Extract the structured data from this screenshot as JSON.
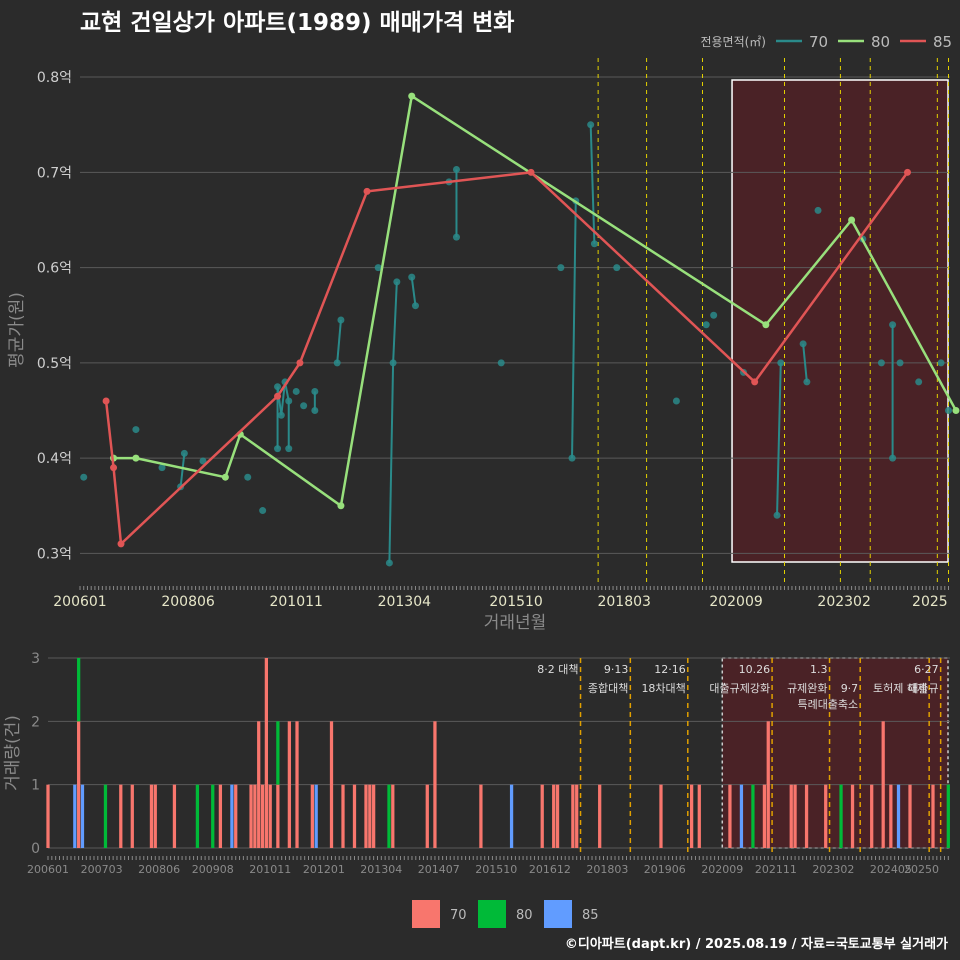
{
  "title": "교현 건일상가 아파트(1989) 매매가격 변화",
  "credit": "©디아파트(dapt.kr) / 2025.08.19 / 자료=국토교통부 실거래가",
  "colors": {
    "s70": "#2a8a8a",
    "s80": "#98e07c",
    "s85": "#e05555",
    "bar70": "#f8766d",
    "bar80": "#00ba38",
    "bar85": "#619cff",
    "highlight": "#4a2226",
    "vline": "#e3d200"
  },
  "chart_data": [
    {
      "type": "line",
      "xlabel": "거래년월",
      "ylabel": "평균가(원)",
      "ylim": [
        0.27,
        0.82
      ],
      "yticks": [
        0.3,
        0.4,
        0.5,
        0.6,
        0.7,
        0.8
      ],
      "ytick_labels": [
        "0.3억",
        "0.4억",
        "0.5억",
        "0.6억",
        "0.7억",
        "0.8억"
      ],
      "xticks": [
        "200601",
        "200806",
        "201011",
        "201304",
        "201510",
        "201803",
        "202009",
        "202302",
        "2025"
      ],
      "legend_title": "전용면적(㎡)",
      "legend": [
        "70",
        "80",
        "85"
      ],
      "highlight": [
        "2020.09",
        "2025.07"
      ],
      "vlines": [
        "2017.08",
        "2018.09",
        "2019.12",
        "2021.10",
        "2023.01",
        "2023.09",
        "2025.03",
        "2025.06"
      ],
      "series": [
        {
          "name": "70",
          "points": [
            [
              "2006.02",
              0.38
            ],
            [
              "2007.04",
              0.43
            ],
            [
              "2007.11",
              0.39
            ],
            [
              "2008.04",
              0.37
            ],
            [
              "2008.05",
              0.405
            ],
            [
              "2008.10",
              0.397
            ],
            [
              "2009.10",
              0.38
            ],
            [
              "2010.02",
              0.345
            ],
            [
              "2010.06",
              0.41
            ],
            [
              "2010.06",
              0.475
            ],
            [
              "2010.07",
              0.445
            ],
            [
              "2010.08",
              0.48
            ],
            [
              "2010.09",
              0.46
            ],
            [
              "2010.09",
              0.41
            ],
            [
              "2010.11",
              0.47
            ],
            [
              "2011.01",
              0.455
            ],
            [
              "2011.04",
              0.47
            ],
            [
              "2011.04",
              0.45
            ],
            [
              "2011.10",
              0.5
            ],
            [
              "2011.11",
              0.545
            ],
            [
              "2012.09",
              0.6
            ],
            [
              "2012.12",
              0.29
            ],
            [
              "2013.01",
              0.5
            ],
            [
              "2013.02",
              0.585
            ],
            [
              "2013.06",
              0.59
            ],
            [
              "2013.07",
              0.56
            ],
            [
              "2014.04",
              0.69
            ],
            [
              "2014.06",
              0.703
            ],
            [
              "2014.06",
              0.632
            ],
            [
              "2015.06",
              0.5
            ],
            [
              "2016.10",
              0.6
            ],
            [
              "2017.01",
              0.4
            ],
            [
              "2017.02",
              0.67
            ],
            [
              "2017.06",
              0.75
            ],
            [
              "2017.07",
              0.625
            ],
            [
              "2018.01",
              0.6
            ],
            [
              "2019.05",
              0.46
            ],
            [
              "2020.01",
              0.54
            ],
            [
              "2020.03",
              0.55
            ],
            [
              "2020.11",
              0.49
            ],
            [
              "2021.08",
              0.34
            ],
            [
              "2021.09",
              0.5
            ],
            [
              "2022.03",
              0.52
            ],
            [
              "2022.04",
              0.48
            ],
            [
              "2022.07",
              0.66
            ],
            [
              "2023.07",
              0.63
            ],
            [
              "2023.12",
              0.5
            ],
            [
              "2024.03",
              0.54
            ],
            [
              "2024.03",
              0.4
            ],
            [
              "2024.05",
              0.5
            ],
            [
              "2024.10",
              0.48
            ],
            [
              "2025.04",
              0.5
            ],
            [
              "2025.06",
              0.45
            ]
          ]
        },
        {
          "name": "80",
          "points": [
            [
              "2006.10",
              0.4
            ],
            [
              "2007.04",
              0.4
            ],
            [
              "2009.04",
              0.38
            ],
            [
              "2009.08",
              0.425
            ],
            [
              "2011.11",
              0.35
            ],
            [
              "2013.06",
              0.78
            ],
            [
              "2021.05",
              0.54
            ],
            [
              "2023.04",
              0.65
            ],
            [
              "2025.08",
              0.45
            ]
          ]
        },
        {
          "name": "85",
          "points": [
            [
              "2006.08",
              0.46
            ],
            [
              "2006.10",
              0.39
            ],
            [
              "2006.12",
              0.31
            ],
            [
              "2010.06",
              0.465
            ],
            [
              "2010.12",
              0.5
            ],
            [
              "2012.06",
              0.68
            ],
            [
              "2016.02",
              0.7
            ],
            [
              "2021.02",
              0.48
            ],
            [
              "2024.07",
              0.7
            ]
          ]
        }
      ]
    },
    {
      "type": "bar",
      "ylabel": "거래량(건)",
      "ylim": [
        0,
        3
      ],
      "yticks": [
        0,
        1,
        2,
        3
      ],
      "xticks": [
        "200601",
        "200703",
        "200806",
        "200908",
        "201011",
        "201201",
        "201304",
        "201407",
        "201510",
        "201612",
        "201803",
        "201906",
        "202009",
        "202111",
        "202302",
        "202405",
        "20250"
      ],
      "legend": [
        "70",
        "80",
        "85"
      ],
      "annotations": [
        {
          "date": "2017.08",
          "top": "8·2 대책",
          "bottom": ""
        },
        {
          "date": "2018.09",
          "top": "9·13",
          "bottom": "종합대책"
        },
        {
          "date": "2019.12",
          "top": "12·16",
          "bottom": "18차대책"
        },
        {
          "date": "2021.10",
          "top": "10.26",
          "bottom": "대출규제강화"
        },
        {
          "date": "2023.01",
          "top": "1.3",
          "bottom": "규제완화"
        },
        {
          "date": "2023.09",
          "top": "",
          "bottom": "9·7"
        },
        {
          "date": "2023.09",
          "top": "",
          "bottom": "특례대출축소"
        },
        {
          "date": "2025.03",
          "top": "",
          "bottom": "토허제 해제"
        },
        {
          "date": "2025.06",
          "top": "6·27",
          "bottom": "대출규"
        }
      ],
      "bars": [
        {
          "date": "2006.01",
          "v70": 1,
          "v80": 0,
          "v85": 0
        },
        {
          "date": "2006.08",
          "v70": 0,
          "v80": 0,
          "v85": 1
        },
        {
          "date": "2006.09",
          "v70": 2,
          "v80": 1,
          "v85": 0
        },
        {
          "date": "2006.10",
          "v70": 0,
          "v80": 0,
          "v85": 1
        },
        {
          "date": "2007.04",
          "v70": 0,
          "v80": 1,
          "v85": 0
        },
        {
          "date": "2007.08",
          "v70": 1,
          "v80": 0,
          "v85": 0
        },
        {
          "date": "2007.11",
          "v70": 1,
          "v80": 0,
          "v85": 0
        },
        {
          "date": "2008.04",
          "v70": 1,
          "v80": 0,
          "v85": 0
        },
        {
          "date": "2008.05",
          "v70": 1,
          "v80": 0,
          "v85": 0
        },
        {
          "date": "2008.10",
          "v70": 1,
          "v80": 0,
          "v85": 0
        },
        {
          "date": "2009.04",
          "v70": 0,
          "v80": 1,
          "v85": 0
        },
        {
          "date": "2009.08",
          "v70": 0,
          "v80": 1,
          "v85": 0
        },
        {
          "date": "2009.10",
          "v70": 1,
          "v80": 0,
          "v85": 0
        },
        {
          "date": "2010.01",
          "v70": 0,
          "v80": 0,
          "v85": 1
        },
        {
          "date": "2010.02",
          "v70": 1,
          "v80": 0,
          "v85": 0
        },
        {
          "date": "2010.06",
          "v70": 1,
          "v80": 0,
          "v85": 0
        },
        {
          "date": "2010.07",
          "v70": 1,
          "v80": 0,
          "v85": 0
        },
        {
          "date": "2010.08",
          "v70": 2,
          "v80": 0,
          "v85": 0
        },
        {
          "date": "2010.09",
          "v70": 1,
          "v80": 0,
          "v85": 0
        },
        {
          "date": "2010.10",
          "v70": 3,
          "v80": 0,
          "v85": 0
        },
        {
          "date": "2010.11",
          "v70": 1,
          "v80": 0,
          "v85": 0
        },
        {
          "date": "2011.01",
          "v70": 1,
          "v80": 1,
          "v85": 0
        },
        {
          "date": "2011.04",
          "v70": 2,
          "v80": 0,
          "v85": 0
        },
        {
          "date": "2011.06",
          "v70": 2,
          "v80": 0,
          "v85": 0
        },
        {
          "date": "2011.10",
          "v70": 1,
          "v80": 0,
          "v85": 0
        },
        {
          "date": "2011.11",
          "v70": 0,
          "v80": 0,
          "v85": 1
        },
        {
          "date": "2012.03",
          "v70": 2,
          "v80": 0,
          "v85": 0
        },
        {
          "date": "2012.06",
          "v70": 1,
          "v80": 0,
          "v85": 0
        },
        {
          "date": "2012.09",
          "v70": 1,
          "v80": 0,
          "v85": 0
        },
        {
          "date": "2012.12",
          "v70": 1,
          "v80": 0,
          "v85": 0
        },
        {
          "date": "2013.01",
          "v70": 1,
          "v80": 0,
          "v85": 0
        },
        {
          "date": "2013.02",
          "v70": 1,
          "v80": 0,
          "v85": 0
        },
        {
          "date": "2013.06",
          "v70": 0,
          "v80": 1,
          "v85": 0
        },
        {
          "date": "2013.07",
          "v70": 1,
          "v80": 0,
          "v85": 0
        },
        {
          "date": "2014.04",
          "v70": 1,
          "v80": 0,
          "v85": 0
        },
        {
          "date": "2014.06",
          "v70": 2,
          "v80": 0,
          "v85": 0
        },
        {
          "date": "2015.06",
          "v70": 1,
          "v80": 0,
          "v85": 0
        },
        {
          "date": "2016.02",
          "v70": 0,
          "v80": 0,
          "v85": 1
        },
        {
          "date": "2016.10",
          "v70": 1,
          "v80": 0,
          "v85": 0
        },
        {
          "date": "2017.01",
          "v70": 1,
          "v80": 0,
          "v85": 0
        },
        {
          "date": "2017.02",
          "v70": 1,
          "v80": 0,
          "v85": 0
        },
        {
          "date": "2017.06",
          "v70": 1,
          "v80": 0,
          "v85": 0
        },
        {
          "date": "2017.07",
          "v70": 1,
          "v80": 0,
          "v85": 0
        },
        {
          "date": "2018.01",
          "v70": 1,
          "v80": 0,
          "v85": 0
        },
        {
          "date": "2019.05",
          "v70": 1,
          "v80": 0,
          "v85": 0
        },
        {
          "date": "2020.01",
          "v70": 1,
          "v80": 0,
          "v85": 0
        },
        {
          "date": "2020.03",
          "v70": 1,
          "v80": 0,
          "v85": 0
        },
        {
          "date": "2020.11",
          "v70": 1,
          "v80": 0,
          "v85": 0
        },
        {
          "date": "2021.02",
          "v70": 0,
          "v80": 0,
          "v85": 1
        },
        {
          "date": "2021.05",
          "v70": 0,
          "v80": 1,
          "v85": 0
        },
        {
          "date": "2021.08",
          "v70": 1,
          "v80": 0,
          "v85": 0
        },
        {
          "date": "2021.09",
          "v70": 2,
          "v80": 0,
          "v85": 0
        },
        {
          "date": "2022.03",
          "v70": 1,
          "v80": 0,
          "v85": 0
        },
        {
          "date": "2022.04",
          "v70": 1,
          "v80": 0,
          "v85": 0
        },
        {
          "date": "2022.07",
          "v70": 1,
          "v80": 0,
          "v85": 0
        },
        {
          "date": "2022.12",
          "v70": 1,
          "v80": 0,
          "v85": 0
        },
        {
          "date": "2023.04",
          "v70": 0,
          "v80": 1,
          "v85": 0
        },
        {
          "date": "2023.07",
          "v70": 1,
          "v80": 0,
          "v85": 0
        },
        {
          "date": "2023.12",
          "v70": 1,
          "v80": 0,
          "v85": 0
        },
        {
          "date": "2024.03",
          "v70": 2,
          "v80": 0,
          "v85": 0
        },
        {
          "date": "2024.05",
          "v70": 1,
          "v80": 0,
          "v85": 0
        },
        {
          "date": "2024.07",
          "v70": 0,
          "v80": 0,
          "v85": 1
        },
        {
          "date": "2024.10",
          "v70": 1,
          "v80": 0,
          "v85": 0
        },
        {
          "date": "2025.04",
          "v70": 1,
          "v80": 0,
          "v85": 0
        },
        {
          "date": "2025.08",
          "v70": 0,
          "v80": 1,
          "v85": 0
        }
      ]
    }
  ]
}
